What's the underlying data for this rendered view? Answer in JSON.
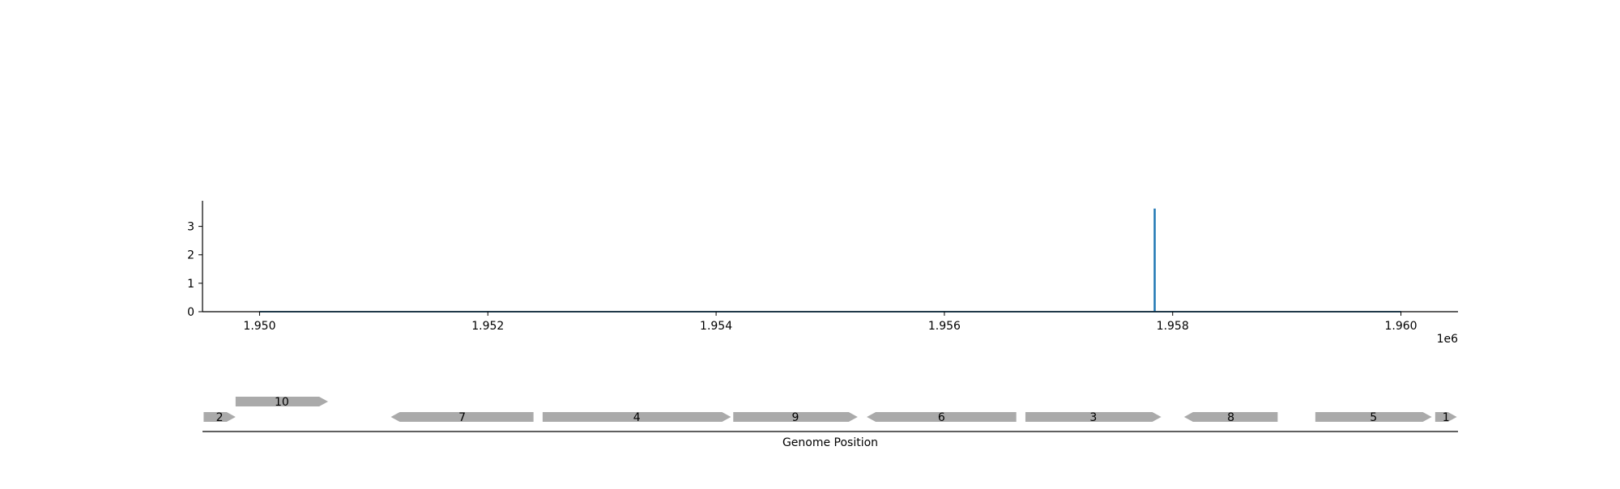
{
  "chart_data": [
    {
      "type": "line",
      "title": "",
      "xlabel": "",
      "ylabel": "",
      "x_offset_label": "1e6",
      "xlim": [
        1949500,
        1960500
      ],
      "ylim": [
        0,
        3.9
      ],
      "x_ticks": [
        1950000,
        1952000,
        1954000,
        1956000,
        1958000,
        1960000
      ],
      "x_tick_labels": [
        "1.950",
        "1.952",
        "1.954",
        "1.956",
        "1.958",
        "1.960"
      ],
      "y_ticks": [
        0,
        1,
        2,
        3
      ],
      "y_tick_labels": [
        "0",
        "1",
        "2",
        "3"
      ],
      "grid": false,
      "series": [
        {
          "color": "#1f77b4",
          "x": [
            1950000,
            1957840,
            1957840,
            1957845,
            1957845,
            1960000
          ],
          "y": [
            0,
            0,
            3.6,
            3.6,
            0,
            0
          ]
        }
      ]
    },
    {
      "type": "gene_track",
      "xlabel": "Genome Position",
      "xlim": [
        1949500,
        1960500
      ],
      "gene_color": "#aaaaaa",
      "genes": [
        {
          "label": "2",
          "start": 1949510,
          "end": 1949790,
          "strand": 1,
          "row": 0
        },
        {
          "label": "10",
          "start": 1949790,
          "end": 1950600,
          "strand": 1,
          "row": 1
        },
        {
          "label": "7",
          "start": 1951150,
          "end": 1952400,
          "strand": -1,
          "row": 0
        },
        {
          "label": "4",
          "start": 1952480,
          "end": 1954130,
          "strand": 1,
          "row": 0
        },
        {
          "label": "9",
          "start": 1954150,
          "end": 1955240,
          "strand": 1,
          "row": 0
        },
        {
          "label": "6",
          "start": 1955320,
          "end": 1956630,
          "strand": -1,
          "row": 0
        },
        {
          "label": "3",
          "start": 1956710,
          "end": 1957900,
          "strand": 1,
          "row": 0
        },
        {
          "label": "8",
          "start": 1958100,
          "end": 1958920,
          "strand": -1,
          "row": 0
        },
        {
          "label": "5",
          "start": 1959250,
          "end": 1960270,
          "strand": 1,
          "row": 0
        },
        {
          "label": "1",
          "start": 1960300,
          "end": 1960490,
          "strand": 1,
          "row": 0
        }
      ]
    }
  ]
}
